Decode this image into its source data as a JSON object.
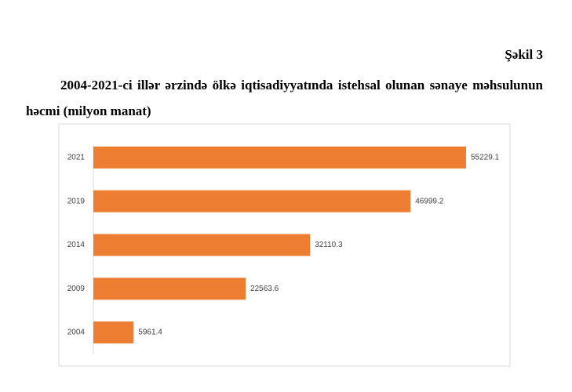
{
  "document": {
    "figure_label": "Şəkil 3",
    "caption": "2004-2021-ci illər ərzində ölkə iqtisadiyyatında istehsal olunan sənaye məhsulunun həcmi (milyon manat)"
  },
  "chart_data": {
    "type": "hbar",
    "categories": [
      "2021",
      "2019",
      "2014",
      "2009",
      "2004"
    ],
    "values": [
      55229.1,
      46999.2,
      32110.3,
      22563.6,
      5961.4
    ],
    "color": "#ed7d31",
    "xlim": [
      0,
      60000
    ]
  }
}
